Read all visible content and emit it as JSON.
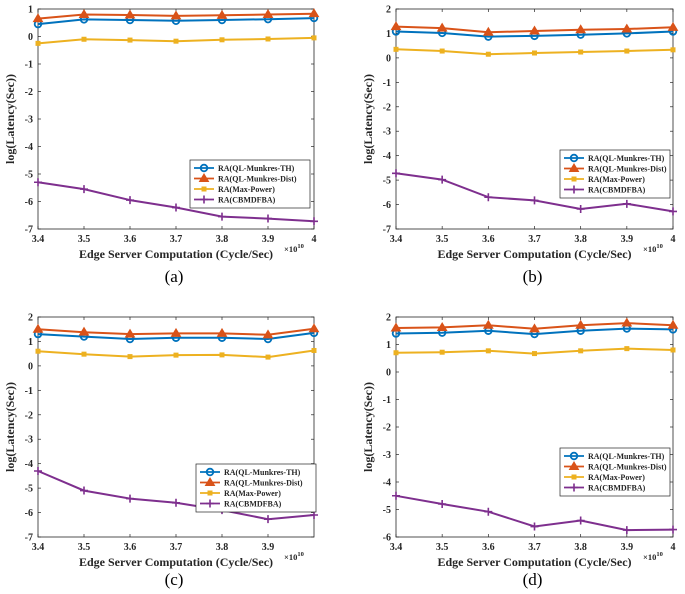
{
  "figure": {
    "colors": {
      "TH": "#0072BD",
      "Dist": "#D95319",
      "MaxPower": "#EDB120",
      "CBMDFBA": "#7E2F8E"
    },
    "x_exponent_base": "×10",
    "x_exponent_power": "10"
  },
  "chart_data": [
    {
      "type": "line",
      "caption": "(a)",
      "xlabel": "Edge Server Computation (Cycle/Sec)",
      "ylabel": "log(Latency(Sec))",
      "xlim": [
        3.4,
        4.0
      ],
      "ylim": [
        -7,
        1
      ],
      "x": [
        3.4,
        3.5,
        3.6,
        3.7,
        3.8,
        3.9,
        4.0
      ],
      "xticks": [
        "3.4",
        "3.5",
        "3.6",
        "3.7",
        "3.8",
        "3.9",
        "4"
      ],
      "yticks": [
        "1",
        "0",
        "-1",
        "-2",
        "-3",
        "-4",
        "-5",
        "-6",
        "-7"
      ],
      "yticks_vals": [
        1,
        0,
        -1,
        -2,
        -3,
        -4,
        -5,
        -6,
        -7
      ],
      "series": [
        {
          "name": "RA(QL-Munkres-TH)",
          "color": "#0072BD",
          "marker": "circle",
          "values": [
            0.45,
            0.62,
            0.6,
            0.57,
            0.6,
            0.63,
            0.67
          ]
        },
        {
          "name": "RA(QL-Munkres-Dist)",
          "color": "#D95319",
          "marker": "triangle",
          "values": [
            0.65,
            0.8,
            0.78,
            0.75,
            0.77,
            0.8,
            0.83
          ]
        },
        {
          "name": "RA(Max-Power)",
          "color": "#EDB120",
          "marker": "square",
          "values": [
            -0.25,
            -0.1,
            -0.13,
            -0.17,
            -0.12,
            -0.09,
            -0.05
          ]
        },
        {
          "name": "RA(CBMDFBA)",
          "color": "#7E2F8E",
          "marker": "plus",
          "values": [
            -5.3,
            -5.55,
            -5.95,
            -6.22,
            -6.55,
            -6.62,
            -6.72
          ]
        }
      ]
    },
    {
      "type": "line",
      "caption": "(b)",
      "xlabel": "Edge Server Computation (Cycle/Sec)",
      "ylabel": "log(Latency(Sec))",
      "xlim": [
        3.4,
        4.0
      ],
      "ylim": [
        -7,
        2
      ],
      "x": [
        3.4,
        3.5,
        3.6,
        3.7,
        3.8,
        3.9,
        4.0
      ],
      "xticks": [
        "3.4",
        "3.5",
        "3.6",
        "3.7",
        "3.8",
        "3.9",
        "4"
      ],
      "yticks": [
        "2",
        "1",
        "0",
        "-1",
        "-2",
        "-3",
        "-4",
        "-5",
        "-6",
        "-7"
      ],
      "yticks_vals": [
        2,
        1,
        0,
        -1,
        -2,
        -3,
        -4,
        -5,
        -6,
        -7
      ],
      "series": [
        {
          "name": "RA(QL-Munkres-TH)",
          "color": "#0072BD",
          "marker": "circle",
          "values": [
            1.08,
            1.02,
            0.87,
            0.9,
            0.95,
            1.0,
            1.08
          ]
        },
        {
          "name": "RA(QL-Munkres-Dist)",
          "color": "#D95319",
          "marker": "triangle",
          "values": [
            1.28,
            1.22,
            1.05,
            1.1,
            1.15,
            1.18,
            1.25
          ]
        },
        {
          "name": "RA(Max-Power)",
          "color": "#EDB120",
          "marker": "square",
          "values": [
            0.35,
            0.28,
            0.15,
            0.2,
            0.24,
            0.28,
            0.33
          ]
        },
        {
          "name": "RA(CBMDFBA)",
          "color": "#7E2F8E",
          "marker": "plus",
          "values": [
            -4.72,
            -4.98,
            -5.7,
            -5.83,
            -6.18,
            -5.97,
            -6.28
          ]
        }
      ]
    },
    {
      "type": "line",
      "caption": "(c)",
      "xlabel": "Edge Server Computation (Cycle/Sec)",
      "ylabel": "log(Latency(Sec))",
      "xlim": [
        3.4,
        4.0
      ],
      "ylim": [
        -7,
        2
      ],
      "x": [
        3.4,
        3.5,
        3.6,
        3.7,
        3.8,
        3.9,
        4.0
      ],
      "xticks": [
        "3.4",
        "3.5",
        "3.6",
        "3.7",
        "3.8",
        "3.9"
      ],
      "yticks": [
        "2",
        "1",
        "0",
        "-1",
        "-2",
        "-3",
        "-4",
        "-5",
        "-6",
        "-7"
      ],
      "yticks_vals": [
        2,
        1,
        0,
        -1,
        -2,
        -3,
        -4,
        -5,
        -6,
        -7
      ],
      "series": [
        {
          "name": "RA(QL-Munkres-TH)",
          "color": "#0072BD",
          "marker": "circle",
          "values": [
            1.3,
            1.2,
            1.1,
            1.15,
            1.15,
            1.1,
            1.35
          ]
        },
        {
          "name": "RA(QL-Munkres-Dist)",
          "color": "#D95319",
          "marker": "triangle",
          "values": [
            1.5,
            1.38,
            1.3,
            1.33,
            1.33,
            1.27,
            1.52
          ]
        },
        {
          "name": "RA(Max-Power)",
          "color": "#EDB120",
          "marker": "square",
          "values": [
            0.6,
            0.48,
            0.38,
            0.44,
            0.45,
            0.36,
            0.63
          ]
        },
        {
          "name": "RA(CBMDFBA)",
          "color": "#7E2F8E",
          "marker": "plus",
          "values": [
            -4.3,
            -5.1,
            -5.43,
            -5.6,
            -5.9,
            -6.27,
            -6.1
          ]
        }
      ]
    },
    {
      "type": "line",
      "caption": "(d)",
      "xlabel": "Edge Server Computation (Cycle/Sec)",
      "ylabel": "log(Latency(Sec))",
      "xlim": [
        3.4,
        4.0
      ],
      "ylim": [
        -6,
        2
      ],
      "x": [
        3.4,
        3.5,
        3.6,
        3.7,
        3.8,
        3.9,
        4.0
      ],
      "xticks": [
        "3.4",
        "3.5",
        "3.6",
        "3.7",
        "3.8",
        "3.9",
        "4"
      ],
      "yticks": [
        "2",
        "1",
        "0",
        "-1",
        "-2",
        "-3",
        "-4",
        "-5",
        "-6"
      ],
      "yticks_vals": [
        2,
        1,
        0,
        -1,
        -2,
        -3,
        -4,
        -5,
        -6
      ],
      "series": [
        {
          "name": "RA(QL-Munkres-TH)",
          "color": "#0072BD",
          "marker": "circle",
          "values": [
            1.4,
            1.43,
            1.5,
            1.38,
            1.5,
            1.58,
            1.55
          ]
        },
        {
          "name": "RA(QL-Munkres-Dist)",
          "color": "#D95319",
          "marker": "triangle",
          "values": [
            1.6,
            1.62,
            1.7,
            1.57,
            1.7,
            1.78,
            1.7
          ]
        },
        {
          "name": "RA(Max-Power)",
          "color": "#EDB120",
          "marker": "square",
          "values": [
            0.7,
            0.72,
            0.77,
            0.67,
            0.77,
            0.85,
            0.8
          ]
        },
        {
          "name": "RA(CBMDFBA)",
          "color": "#7E2F8E",
          "marker": "plus",
          "values": [
            -4.5,
            -4.8,
            -5.08,
            -5.62,
            -5.4,
            -5.75,
            -5.73
          ]
        }
      ]
    }
  ]
}
